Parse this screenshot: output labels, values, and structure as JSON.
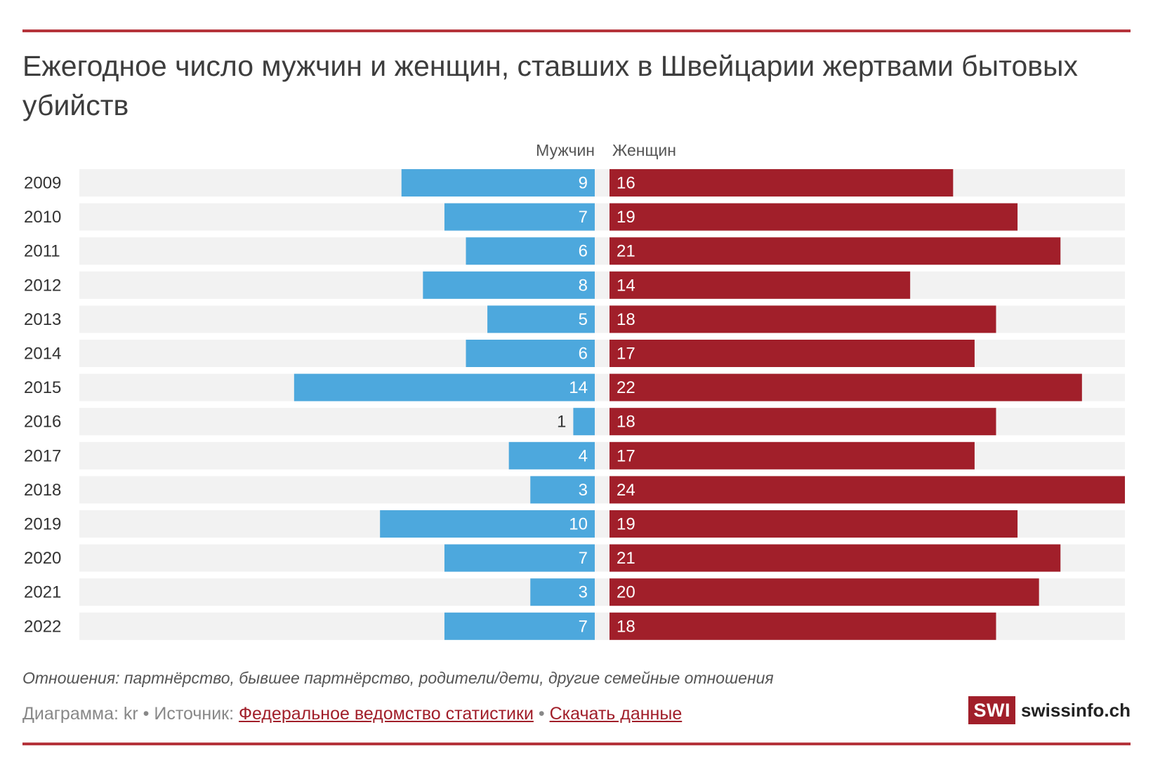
{
  "header": {
    "title": "Ежегодное число мужчин и женщин, ставших в Швейцарии жертвами бытовых убийств"
  },
  "chart_data": {
    "type": "bar",
    "orientation": "horizontal-butterfly",
    "categories": [
      "2009",
      "2010",
      "2011",
      "2012",
      "2013",
      "2014",
      "2015",
      "2016",
      "2017",
      "2018",
      "2019",
      "2020",
      "2021",
      "2022"
    ],
    "series": [
      {
        "name": "Мужчин",
        "values": [
          9,
          7,
          6,
          8,
          5,
          6,
          14,
          1,
          4,
          3,
          10,
          7,
          3,
          7
        ],
        "color": "#4da8dd"
      },
      {
        "name": "Женщин",
        "values": [
          16,
          19,
          21,
          14,
          18,
          17,
          22,
          18,
          17,
          24,
          19,
          21,
          20,
          18
        ],
        "color": "#a11f2a"
      }
    ],
    "xlim": [
      0,
      24
    ],
    "grid": false,
    "legend": "column-headers"
  },
  "footer": {
    "note": "Отношения: партнёрство, бывшее партнёрство, родители/дети, другие семейные отношения",
    "credit_prefix": "Диаграмма: kr • Источник: ",
    "source_link": "Федеральное ведомство статистики",
    "separator": " • ",
    "download_link": "Скачать данные"
  },
  "logo": {
    "box": "SWI",
    "text": "swissinfo.ch"
  },
  "colors": {
    "accent": "#b5343b",
    "men": "#4da8dd",
    "women": "#a11f2a",
    "track": "#f2f2f2"
  }
}
